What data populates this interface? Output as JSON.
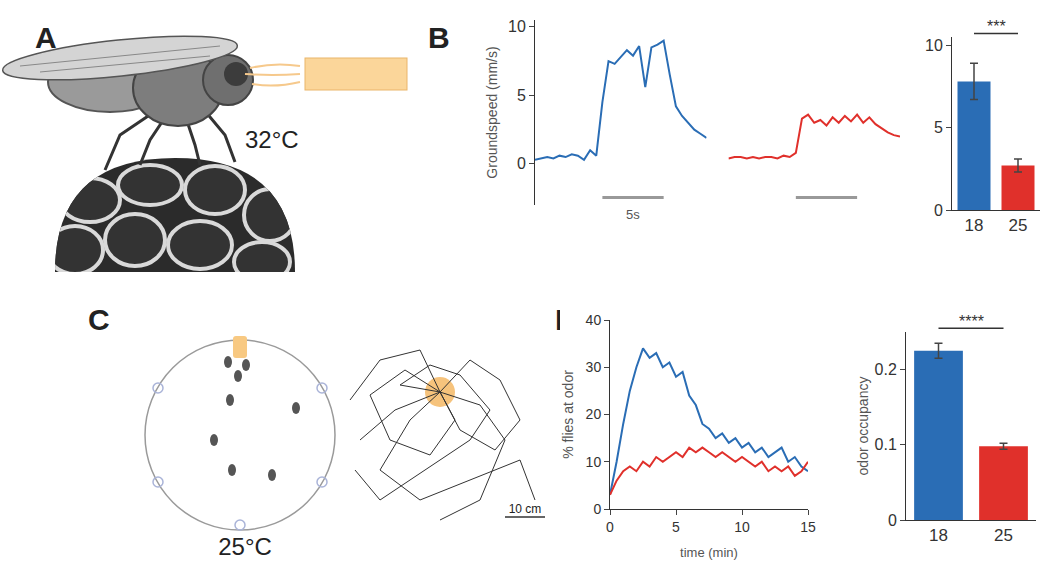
{
  "panel_labels": [
    "A",
    "B",
    "C",
    "D"
  ],
  "illustrations": {
    "A": {
      "text": "32°C"
    },
    "C": {
      "text": "25°C",
      "scale_bar": "10 cm"
    }
  },
  "chart_data": [
    {
      "type": "line",
      "y_label": "Groundspeed (mm/s)",
      "x": [
        0,
        0.5,
        1,
        1.5,
        2,
        2.5,
        3,
        3.5,
        4,
        4.5,
        5,
        5.5,
        6,
        6.5,
        7,
        7.5,
        8,
        8.5,
        9,
        9.5,
        10,
        10.5,
        11,
        11.5,
        12,
        12.5,
        13,
        13.5,
        14
      ],
      "series": [
        {
          "color": "#2a6db5",
          "values": [
            0.3,
            0.4,
            0.5,
            0.4,
            0.6,
            0.5,
            0.7,
            0.6,
            0.3,
            1.0,
            0.6,
            4.5,
            7.5,
            7.3,
            7.8,
            8.3,
            7.9,
            8.6,
            5.6,
            8.5,
            8.7,
            9.0,
            6.5,
            4.2,
            3.5,
            3.0,
            2.5,
            2.2,
            1.9
          ]
        },
        {
          "color": "#e0302b",
          "values": [
            0.4,
            0.5,
            0.5,
            0.4,
            0.5,
            0.4,
            0.5,
            0.5,
            0.4,
            0.6,
            0.5,
            0.8,
            3.3,
            3.6,
            3.0,
            3.2,
            2.8,
            3.4,
            3.0,
            3.5,
            3.1,
            3.6,
            3.0,
            3.4,
            2.9,
            2.6,
            2.3,
            2.1,
            2.0
          ]
        }
      ],
      "ylim": [
        -3,
        10.5
      ],
      "yticks": [
        0,
        5,
        10
      ],
      "tick_labels": "y",
      "scale_bar": {
        "x": [
          5.5,
          10.5
        ],
        "label": "5s"
      }
    },
    {
      "type": "bar",
      "categories": [
        "18",
        "25"
      ],
      "values": [
        7.8,
        2.7
      ],
      "errors": [
        1.1,
        0.4
      ],
      "colors": [
        "#2a6db5",
        "#e0302b"
      ],
      "ylim": [
        0,
        10.5
      ],
      "yticks": [
        0,
        5,
        10
      ],
      "annotations": [
        "***"
      ]
    },
    {
      "type": "line",
      "x_label": "time (min)",
      "y_label": "% flies at odor",
      "x": [
        0,
        0.5,
        1,
        1.5,
        2,
        2.5,
        3,
        3.5,
        4,
        4.5,
        5,
        5.5,
        6,
        6.5,
        7,
        7.5,
        8,
        8.5,
        9,
        9.5,
        10,
        10.5,
        11,
        11.5,
        12,
        12.5,
        13,
        13.5,
        14,
        14.5,
        15
      ],
      "series": [
        {
          "color": "#2a6db5",
          "values": [
            3,
            10,
            18,
            25,
            30,
            34,
            32,
            33,
            30,
            31,
            28,
            29,
            24,
            22,
            18,
            17,
            15,
            16,
            14,
            15,
            13,
            14,
            12,
            13,
            11,
            12,
            13,
            10,
            11,
            9,
            8
          ]
        },
        {
          "color": "#e0302b",
          "values": [
            3,
            6,
            8,
            9,
            8,
            10,
            9,
            11,
            10,
            11,
            12,
            11,
            13,
            12,
            13,
            12,
            11,
            12,
            11,
            10,
            11,
            10,
            9,
            10,
            8,
            9,
            8,
            9,
            7,
            8,
            10
          ]
        }
      ],
      "xlim": [
        0,
        15
      ],
      "xticks": [
        0,
        5,
        10,
        15
      ],
      "ylim": [
        0,
        40
      ],
      "yticks": [
        0,
        10,
        20,
        30,
        40
      ]
    },
    {
      "type": "bar",
      "y_label": "odor occupancy",
      "categories": [
        "18",
        "25"
      ],
      "values": [
        0.225,
        0.098
      ],
      "errors": [
        0.01,
        0.004
      ],
      "colors": [
        "#2a6db5",
        "#e0302b"
      ],
      "ylim": [
        0,
        0.25
      ],
      "yticks": [
        0,
        0.1,
        0.2
      ],
      "annotations": [
        "****"
      ]
    }
  ]
}
